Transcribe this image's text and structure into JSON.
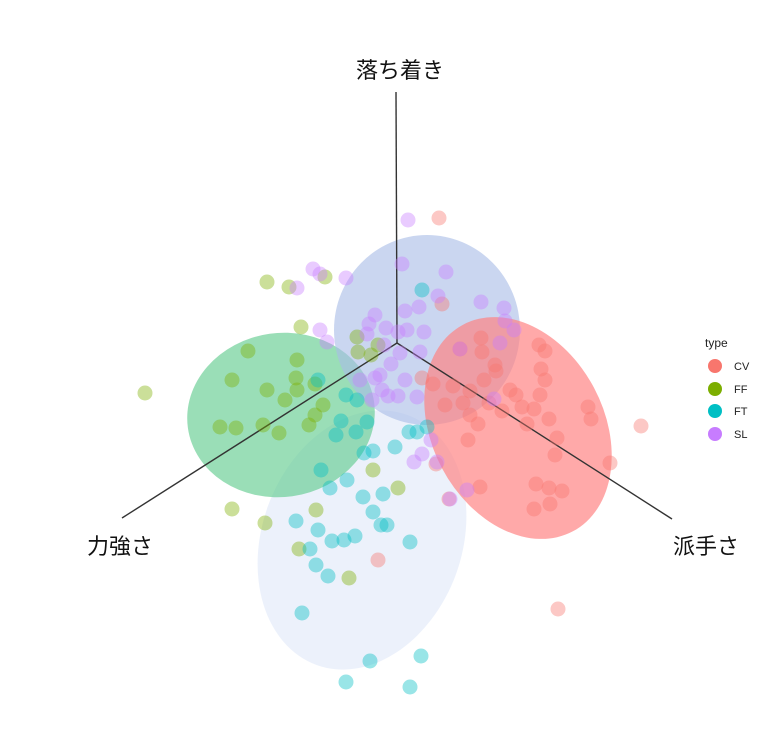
{
  "chart_data": {
    "type": "scatter",
    "axes": [
      {
        "label": "落ち着き",
        "direction": "up"
      },
      {
        "label": "力強さ",
        "direction": "down-left"
      },
      {
        "label": "派手さ",
        "direction": "down-right"
      }
    ],
    "legend": {
      "title": "type",
      "placement": "right",
      "entries": [
        {
          "name": "CV",
          "color": "#F8766D"
        },
        {
          "name": "FF",
          "color": "#7CAE00"
        },
        {
          "name": "FT",
          "color": "#00BFC4"
        },
        {
          "name": "SL",
          "color": "#C77CFF"
        }
      ]
    },
    "ellipse_colors": {
      "CV": "#FF8080",
      "FF": "#5CC98A",
      "FT": "#DCE6F7",
      "SL": "#A9BDE6"
    },
    "series": [
      {
        "name": "CV",
        "points": [
          [
            439,
            218
          ],
          [
            442,
            304
          ],
          [
            460,
            349
          ],
          [
            481,
            338
          ],
          [
            482,
            352
          ],
          [
            496,
            371
          ],
          [
            484,
            380
          ],
          [
            470,
            391
          ],
          [
            453,
            386
          ],
          [
            433,
            384
          ],
          [
            445,
            405
          ],
          [
            463,
            403
          ],
          [
            470,
            415
          ],
          [
            489,
            403
          ],
          [
            502,
            411
          ],
          [
            516,
            395
          ],
          [
            522,
            407
          ],
          [
            527,
            424
          ],
          [
            540,
            395
          ],
          [
            545,
            380
          ],
          [
            541,
            369
          ],
          [
            545,
            351
          ],
          [
            539,
            345
          ],
          [
            510,
            390
          ],
          [
            534,
            409
          ],
          [
            549,
            419
          ],
          [
            557,
            438
          ],
          [
            555,
            455
          ],
          [
            588,
            407
          ],
          [
            591,
            419
          ],
          [
            610,
            463
          ],
          [
            641,
            426
          ],
          [
            536,
            484
          ],
          [
            549,
            488
          ],
          [
            562,
            491
          ],
          [
            534,
            509
          ],
          [
            550,
            504
          ],
          [
            480,
            487
          ],
          [
            468,
            440
          ],
          [
            478,
            424
          ],
          [
            449,
            499
          ],
          [
            436,
            464
          ],
          [
            422,
            378
          ],
          [
            558,
            609
          ],
          [
            378,
            560
          ],
          [
            495,
            365
          ]
        ]
      },
      {
        "name": "FF",
        "points": [
          [
            267,
            282
          ],
          [
            289,
            287
          ],
          [
            301,
            327
          ],
          [
            248,
            351
          ],
          [
            145,
            393
          ],
          [
            232,
            380
          ],
          [
            267,
            390
          ],
          [
            285,
            400
          ],
          [
            296,
            378
          ],
          [
            297,
            390
          ],
          [
            315,
            384
          ],
          [
            323,
            405
          ],
          [
            315,
            415
          ],
          [
            309,
            425
          ],
          [
            220,
            427
          ],
          [
            236,
            428
          ],
          [
            263,
            425
          ],
          [
            279,
            433
          ],
          [
            297,
            360
          ],
          [
            325,
            277
          ],
          [
            232,
            509
          ],
          [
            265,
            523
          ],
          [
            299,
            549
          ],
          [
            349,
            578
          ],
          [
            316,
            510
          ],
          [
            398,
            488
          ],
          [
            373,
            470
          ],
          [
            358,
            352
          ],
          [
            371,
            355
          ],
          [
            357,
            337
          ],
          [
            378,
            345
          ]
        ]
      },
      {
        "name": "FT",
        "points": [
          [
            346,
            682
          ],
          [
            370,
            661
          ],
          [
            410,
            687
          ],
          [
            421,
            656
          ],
          [
            302,
            613
          ],
          [
            328,
            576
          ],
          [
            316,
            565
          ],
          [
            310,
            549
          ],
          [
            344,
            540
          ],
          [
            355,
            536
          ],
          [
            332,
            541
          ],
          [
            318,
            530
          ],
          [
            296,
            521
          ],
          [
            381,
            525
          ],
          [
            387,
            525
          ],
          [
            373,
            512
          ],
          [
            383,
            494
          ],
          [
            363,
            497
          ],
          [
            410,
            542
          ],
          [
            330,
            488
          ],
          [
            321,
            470
          ],
          [
            347,
            480
          ],
          [
            364,
            453
          ],
          [
            373,
            451
          ],
          [
            395,
            447
          ],
          [
            409,
            432
          ],
          [
            417,
            432
          ],
          [
            427,
            427
          ],
          [
            341,
            421
          ],
          [
            336,
            435
          ],
          [
            356,
            432
          ],
          [
            318,
            380
          ],
          [
            346,
            395
          ],
          [
            367,
            422
          ],
          [
            357,
            400
          ],
          [
            422,
            290
          ]
        ]
      },
      {
        "name": "SL",
        "points": [
          [
            408,
            220
          ],
          [
            313,
            269
          ],
          [
            320,
            274
          ],
          [
            297,
            288
          ],
          [
            346,
            278
          ],
          [
            402,
            264
          ],
          [
            438,
            296
          ],
          [
            446,
            272
          ],
          [
            481,
            302
          ],
          [
            504,
            308
          ],
          [
            505,
            321
          ],
          [
            514,
            330
          ],
          [
            419,
            307
          ],
          [
            405,
            311
          ],
          [
            398,
            332
          ],
          [
            386,
            328
          ],
          [
            375,
            315
          ],
          [
            369,
            324
          ],
          [
            367,
            334
          ],
          [
            384,
            345
          ],
          [
            400,
            353
          ],
          [
            420,
            352
          ],
          [
            424,
            332
          ],
          [
            407,
            330
          ],
          [
            460,
            349
          ],
          [
            500,
            343
          ],
          [
            494,
            399
          ],
          [
            417,
            397
          ],
          [
            382,
            390
          ],
          [
            375,
            378
          ],
          [
            360,
            380
          ],
          [
            391,
            364
          ],
          [
            405,
            380
          ],
          [
            380,
            375
          ],
          [
            320,
            330
          ],
          [
            327,
            342
          ],
          [
            422,
            454
          ],
          [
            431,
            440
          ],
          [
            450,
            499
          ],
          [
            467,
            490
          ],
          [
            437,
            462
          ],
          [
            414,
            462
          ],
          [
            388,
            396
          ],
          [
            398,
            396
          ],
          [
            372,
            400
          ]
        ]
      }
    ]
  }
}
